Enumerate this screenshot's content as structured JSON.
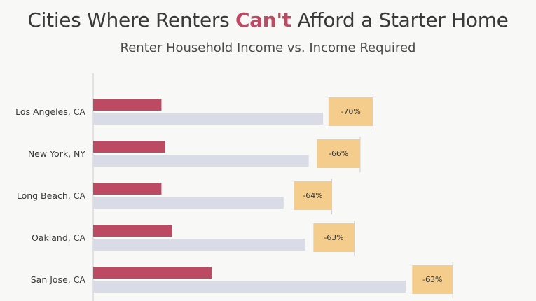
{
  "title": {
    "pre": "Cities Where Renters ",
    "highlight": "Can't",
    "post": " Afford a Starter Home"
  },
  "subtitle": "Renter Household Income vs. Income Required",
  "colors": {
    "renter_income": "#bb4a62",
    "income_required": "#d9dbe6",
    "gap": "#f4cd8c",
    "title_highlight": "#bb4a62"
  },
  "chart_data": {
    "type": "bar",
    "categories": [
      "Los Angeles, CA",
      "New York, NY",
      "Long Beach, CA",
      "Oakland, CA",
      "San Jose, CA"
    ],
    "series": [
      {
        "values": [
          19,
          20,
          19,
          22,
          33
        ]
      },
      {
        "values": [
          64,
          60,
          53,
          59,
          87
        ]
      }
    ],
    "gap_labels": [
      "-70%",
      "-66%",
      "-64%",
      "-63%",
      "-63%"
    ],
    "gap_start": [
      65.5,
      62.3,
      55.9,
      61.3,
      88.8
    ],
    "gap_end": [
      77.9,
      74.3,
      66.4,
      72.7,
      100.1
    ],
    "orientation": "horizontal",
    "xlim": [
      0,
      110
    ],
    "grid": false,
    "xlabel": "",
    "ylabel": ""
  }
}
